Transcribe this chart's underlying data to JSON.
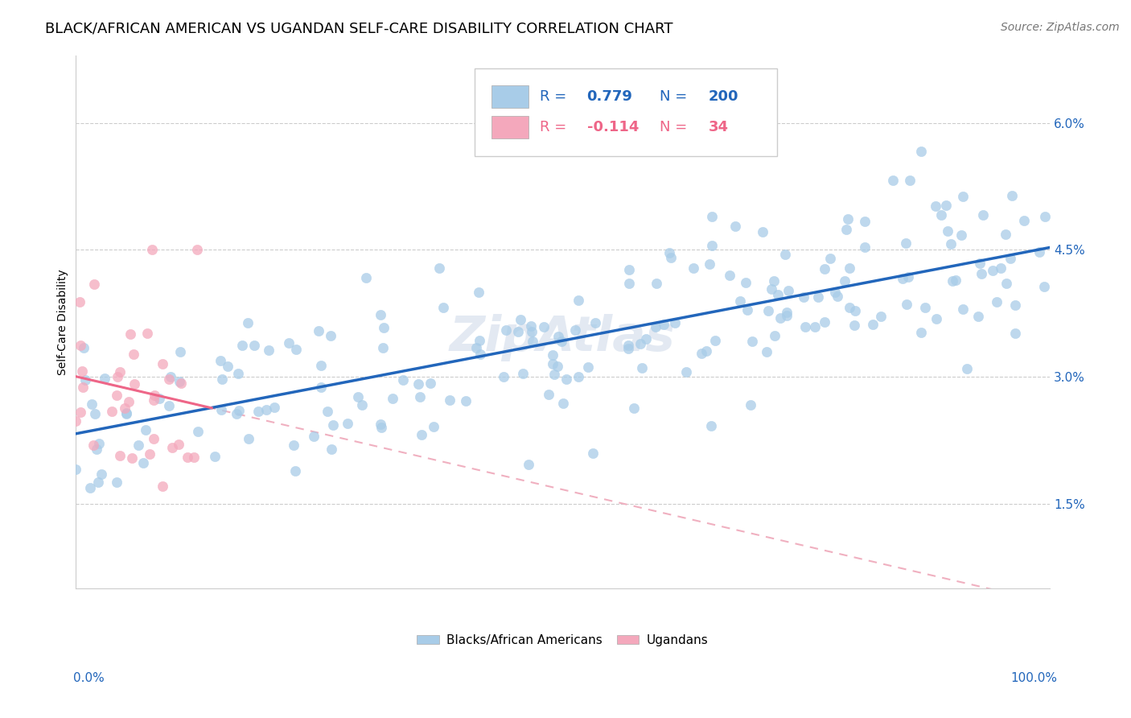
{
  "title": "BLACK/AFRICAN AMERICAN VS UGANDAN SELF-CARE DISABILITY CORRELATION CHART",
  "source": "Source: ZipAtlas.com",
  "ylabel": "Self-Care Disability",
  "yticks_labels": [
    "1.5%",
    "3.0%",
    "4.5%",
    "6.0%"
  ],
  "ytick_values": [
    0.015,
    0.03,
    0.045,
    0.06
  ],
  "xlim": [
    0.0,
    1.0
  ],
  "ylim": [
    0.005,
    0.068
  ],
  "blue_R": 0.779,
  "blue_N": 200,
  "pink_R": -0.114,
  "pink_N": 34,
  "blue_color": "#a8cce8",
  "pink_color": "#f4a8bc",
  "blue_line_color": "#2266bb",
  "pink_line_color": "#ee6688",
  "pink_dash_color": "#f0b0c0",
  "watermark": "ZipAtlas",
  "legend_label_blue": "Blacks/African Americans",
  "legend_label_pink": "Ugandans",
  "title_fontsize": 13,
  "source_fontsize": 10,
  "axis_label_fontsize": 10,
  "tick_fontsize": 11,
  "legend_fontsize": 11,
  "rn_fontsize": 13,
  "blue_intercept": 0.024,
  "blue_slope": 0.021,
  "pink_intercept": 0.027,
  "pink_slope": -0.025
}
